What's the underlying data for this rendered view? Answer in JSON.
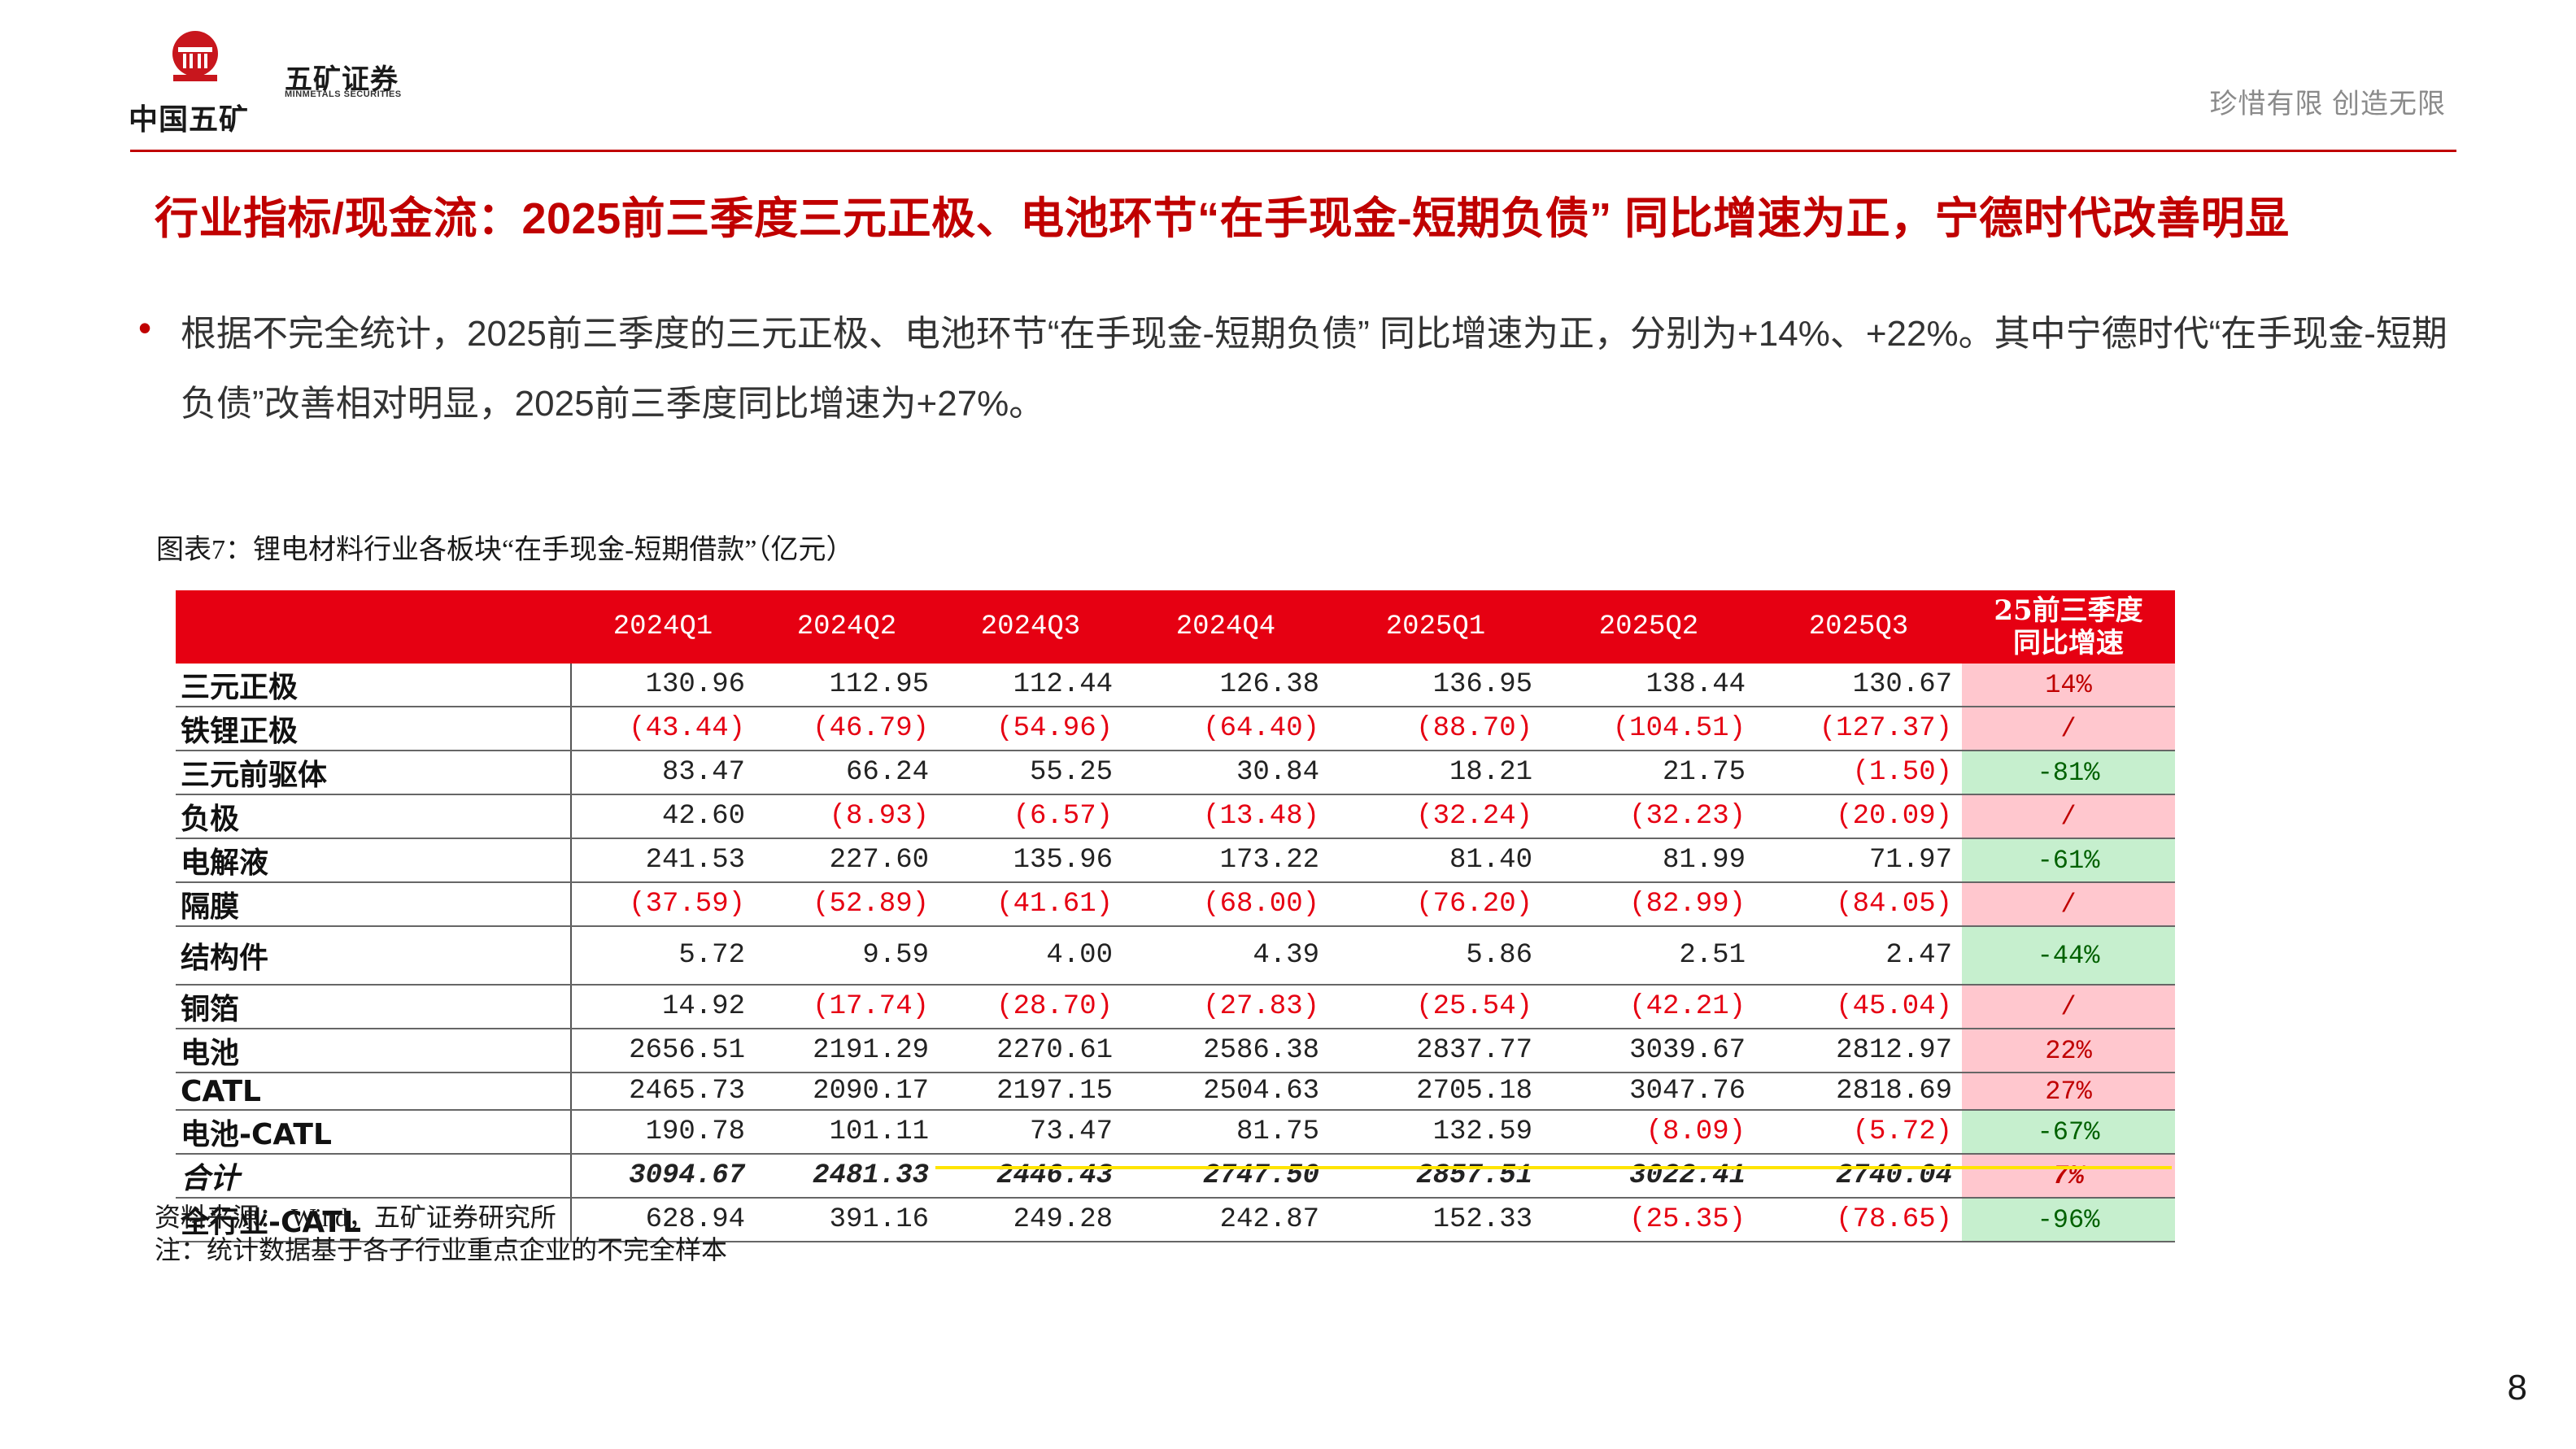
{
  "header": {
    "logo_text": "中国五矿",
    "brand_cn": "五矿证券",
    "brand_en": "MINMETALS SECURITIES",
    "slogan": "珍惜有限  创造无限"
  },
  "title": "行业指标/现金流：2025前三季度三元正极、电池环节“在手现金-短期负债” 同比增速为正，宁德时代改善明显",
  "bullet": "根据不完全统计，2025前三季度的三元正极、电池环节“在手现金-短期负债” 同比增速为正，分别为+14%、+22%。其中宁德时代“在手现金-短期负债”改善相对明显，2025前三季度同比增速为+27%。",
  "table": {
    "caption": "图表7：锂电材料行业各板块“在手现金-短期借款”（亿元）",
    "columns": [
      "",
      "2024Q1",
      "2024Q2",
      "2024Q3",
      "2024Q4",
      "2025Q1",
      "2025Q2",
      "2025Q3"
    ],
    "growth_header": [
      "25前三季度",
      "同比增速"
    ],
    "rows": [
      {
        "label": "三元正极",
        "values": [
          "130.96",
          "112.95",
          "112.44",
          "126.38",
          "136.95",
          "138.44",
          "130.67"
        ],
        "growth": "14%"
      },
      {
        "label": "铁锂正极",
        "values": [
          "(43.44)",
          "(46.79)",
          "(54.96)",
          "(64.40)",
          "(88.70)",
          "(104.51)",
          "(127.37)"
        ],
        "growth": "/"
      },
      {
        "label": "三元前驱体",
        "values": [
          "83.47",
          "66.24",
          "55.25",
          "30.84",
          "18.21",
          "21.75",
          "(1.50)"
        ],
        "growth": "-81%"
      },
      {
        "label": "负极",
        "values": [
          "42.60",
          "(8.93)",
          "(6.57)",
          "(13.48)",
          "(32.24)",
          "(32.23)",
          "(20.09)"
        ],
        "growth": "/"
      },
      {
        "label": "电解液",
        "values": [
          "241.53",
          "227.60",
          "135.96",
          "173.22",
          "81.40",
          "81.99",
          "71.97"
        ],
        "growth": "-61%"
      },
      {
        "label": "隔膜",
        "values": [
          "(37.59)",
          "(52.89)",
          "(41.61)",
          "(68.00)",
          "(76.20)",
          "(82.99)",
          "(84.05)"
        ],
        "growth": "/"
      },
      {
        "label": "结构件",
        "values": [
          "5.72",
          "9.59",
          "4.00",
          "4.39",
          "5.86",
          "2.51",
          "2.47"
        ],
        "growth": "-44%"
      },
      {
        "label": "铜箔",
        "values": [
          "14.92",
          "(17.74)",
          "(28.70)",
          "(27.83)",
          "(25.54)",
          "(42.21)",
          "(45.04)"
        ],
        "growth": "/"
      },
      {
        "label": "电池",
        "values": [
          "2656.51",
          "2191.29",
          "2270.61",
          "2586.38",
          "2837.77",
          "3039.67",
          "2812.97"
        ],
        "growth": "22%"
      },
      {
        "label": "CATL",
        "values": [
          "2465.73",
          "2090.17",
          "2197.15",
          "2504.63",
          "2705.18",
          "3047.76",
          "2818.69"
        ],
        "growth": "27%"
      },
      {
        "label": "电池-CATL",
        "values": [
          "190.78",
          "101.11",
          "73.47",
          "81.75",
          "132.59",
          "(8.09)",
          "(5.72)"
        ],
        "growth": "-67%"
      },
      {
        "label": "合计",
        "values": [
          "3094.67",
          "2481.33",
          "2446.43",
          "2747.50",
          "2857.51",
          "3022.41",
          "2740.04"
        ],
        "growth": "7%"
      },
      {
        "label": "全行业-CATL",
        "values": [
          "628.94",
          "391.16",
          "249.28",
          "242.87",
          "152.33",
          "(25.35)",
          "(78.65)"
        ],
        "growth": "-96%"
      }
    ],
    "colors": {
      "header_bg": "#e60012",
      "negative_text": "#e60012",
      "growth_positive_bg": "#ffc7ce",
      "growth_negative_bg": "#c6efce"
    }
  },
  "source": "资料来源： Wind，五矿证券研究所",
  "note": "注：统计数据基于各子行业重点企业的不完全样本",
  "page_number": "8"
}
